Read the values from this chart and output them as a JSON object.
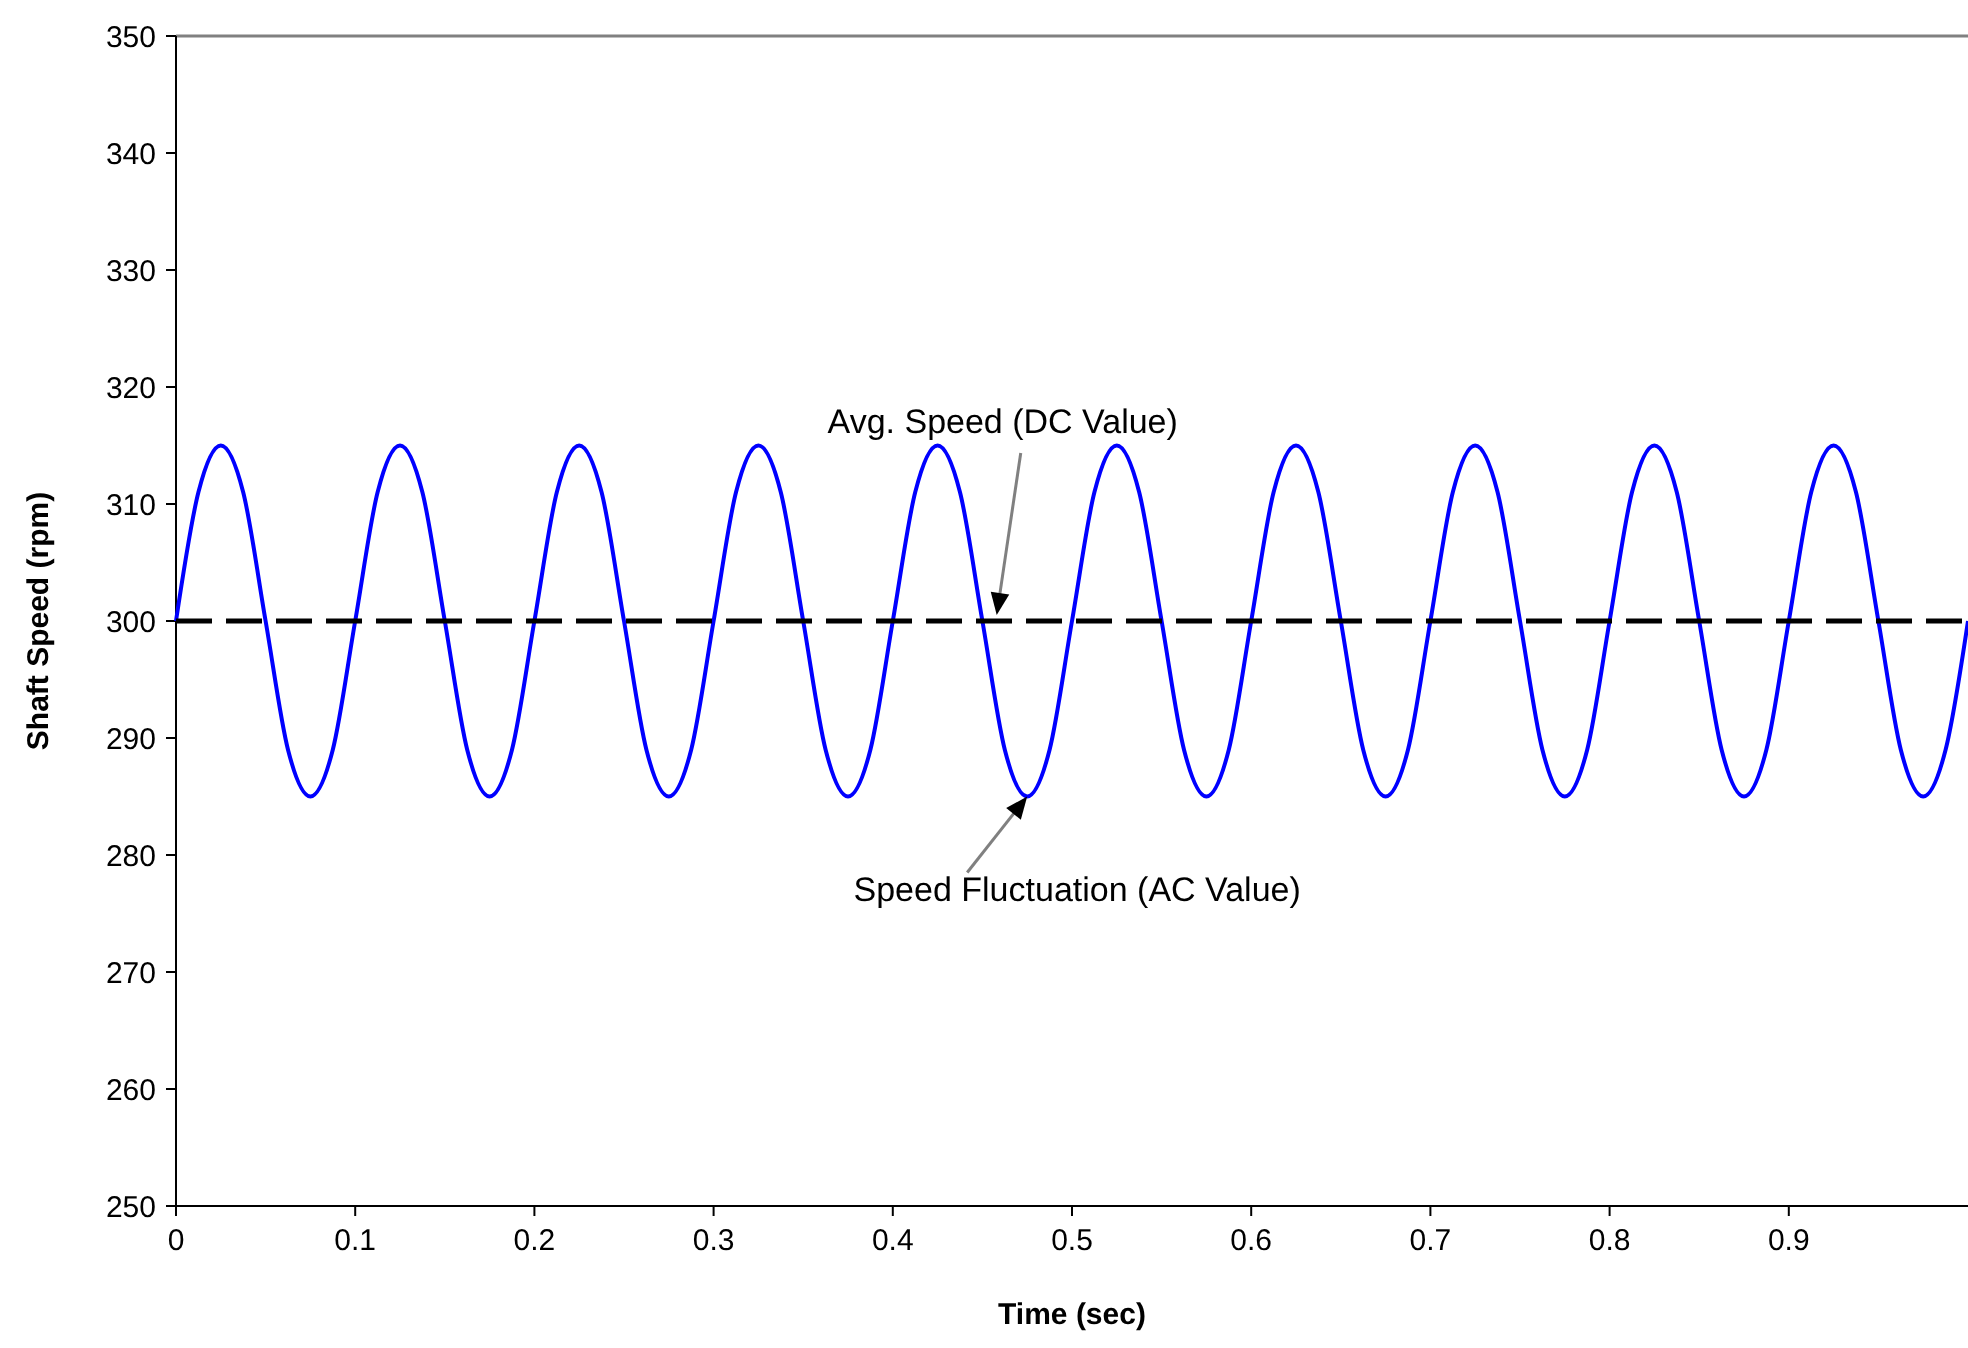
{
  "chart_data": {
    "type": "line",
    "xlabel": "Time (sec)",
    "ylabel": "Shaft Speed (rpm)",
    "x": [
      0,
      0.0125,
      0.025,
      0.0375,
      0.05,
      0.0625,
      0.075,
      0.0875,
      0.1,
      0.1125,
      0.125,
      0.1375,
      0.15,
      0.1625,
      0.175,
      0.1875,
      0.2,
      0.2125,
      0.225,
      0.2375,
      0.25,
      0.2625,
      0.275,
      0.2875,
      0.3,
      0.3125,
      0.325,
      0.3375,
      0.35,
      0.3625,
      0.375,
      0.3875,
      0.4,
      0.4125,
      0.425,
      0.4375,
      0.45,
      0.4625,
      0.475,
      0.4875,
      0.5,
      0.5125,
      0.525,
      0.5375,
      0.55,
      0.5625,
      0.575,
      0.5875,
      0.6,
      0.6125,
      0.625,
      0.6375,
      0.65,
      0.6625,
      0.675,
      0.6875,
      0.7,
      0.7125,
      0.725,
      0.7375,
      0.75,
      0.7625,
      0.775,
      0.7875,
      0.8,
      0.8125,
      0.825,
      0.8375,
      0.85,
      0.8625,
      0.875,
      0.8875,
      0.9,
      0.9125,
      0.925,
      0.9375,
      0.95,
      0.9625,
      0.975,
      0.9875,
      1
    ],
    "series": [
      {
        "color": "#0000ff",
        "values": [
          300,
          311,
          315,
          311,
          300,
          289,
          285,
          289,
          300,
          311,
          315,
          311,
          300,
          289,
          285,
          289,
          300,
          311,
          315,
          311,
          300,
          289,
          285,
          289,
          300,
          311,
          315,
          311,
          300,
          289,
          285,
          289,
          300,
          311,
          315,
          311,
          300,
          289,
          285,
          289,
          300,
          311,
          315,
          311,
          300,
          289,
          285,
          289,
          300,
          311,
          315,
          311,
          300,
          289,
          285,
          289,
          300,
          311,
          315,
          311,
          300,
          289,
          285,
          289,
          300,
          311,
          315,
          311,
          300,
          289,
          285,
          289,
          300,
          311,
          315,
          311,
          300,
          289,
          285,
          289,
          300
        ]
      }
    ],
    "xlim": [
      0,
      1
    ],
    "xticks": [
      0,
      0.1,
      0.2,
      0.3,
      0.4,
      0.5,
      0.6,
      0.7,
      0.8,
      0.9
    ],
    "ylim": [
      250,
      350
    ],
    "yticks": [
      250,
      260,
      270,
      280,
      290,
      300,
      310,
      320,
      330,
      340,
      350
    ],
    "ref_lines": [
      {
        "axis": "y",
        "value": 300,
        "color": "#000000",
        "line_style": "dashed"
      }
    ],
    "annotations": [
      {
        "text": "Avg. Speed (DC Value)",
        "x": 0.458,
        "y": 300
      },
      {
        "text": "Speed Fluctuation (AC Value)",
        "x": 0.475,
        "y": 285
      }
    ],
    "grid": false,
    "marker": "none",
    "line_style": "solid"
  }
}
